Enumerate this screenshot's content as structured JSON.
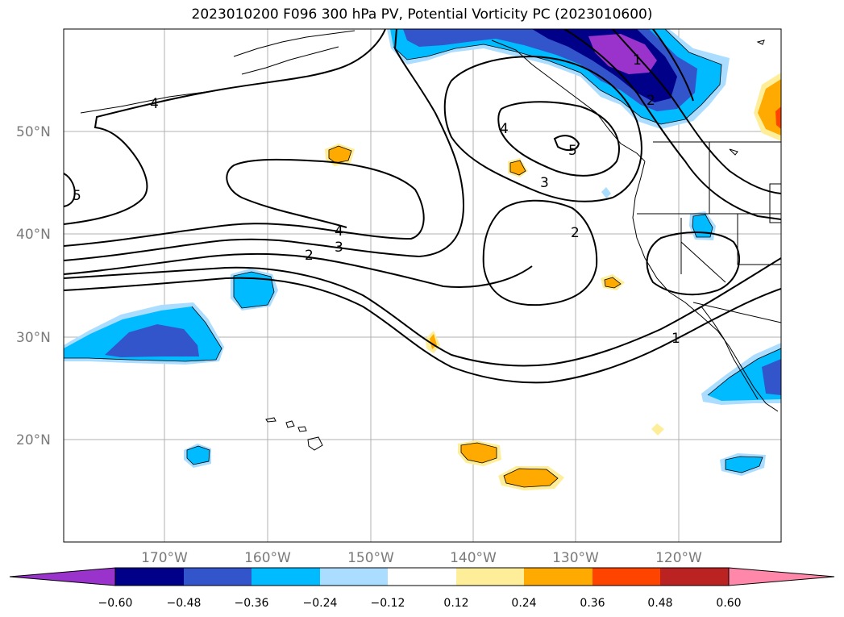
{
  "title": "2023010200 F096 300 hPa PV, Potential Vorticity PC (2023010600)",
  "lat_labels": [
    "50°N",
    "40°N",
    "30°N",
    "20°N"
  ],
  "lon_labels": [
    "170°W",
    "160°W",
    "150°W",
    "140°W",
    "130°W",
    "120°W"
  ],
  "colorbar": {
    "tick_labels": [
      "−0.60",
      "−0.48",
      "−0.36",
      "−0.24",
      "−0.12",
      "0.12",
      "0.24",
      "0.36",
      "0.48",
      "0.60"
    ],
    "colors": [
      "#9933cc",
      "#000088",
      "#3355cc",
      "#00bbff",
      "#aaddff",
      "#ffffff",
      "#ffee99",
      "#ffaa00",
      "#ff4400",
      "#bb2222",
      "#ff88aa"
    ],
    "extend": "both"
  },
  "contour_labels": [
    "4",
    "5",
    "4",
    "5",
    "3",
    "4",
    "3",
    "2",
    "2",
    "1",
    "1",
    "2"
  ],
  "palette": {
    "purple": "#9933cc",
    "navy": "#000088",
    "blue": "#3355cc",
    "cyan": "#00bbff",
    "lightblue": "#aaddff",
    "yellow": "#ffee99",
    "orange": "#ffaa00",
    "redorange": "#ff4400"
  }
}
